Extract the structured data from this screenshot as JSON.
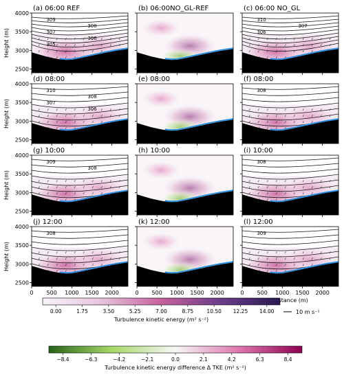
{
  "chart_data": {
    "type": "contour",
    "panels": [
      {
        "id": "a",
        "title": "(a) 06:00   REF",
        "kind": "tke",
        "contours": [
          "309",
          "308",
          "307",
          "306",
          "305"
        ],
        "wind_label": "307"
      },
      {
        "id": "b",
        "title": "(b) 06:00NO_GL-REF",
        "kind": "diff"
      },
      {
        "id": "c",
        "title": "(c) 06:00  NO_GL",
        "kind": "tke",
        "contours": [
          "310",
          "307",
          "306"
        ]
      },
      {
        "id": "d",
        "title": "(d) 08:00",
        "kind": "tke",
        "contours": [
          "310",
          "308",
          "307",
          "306"
        ]
      },
      {
        "id": "e",
        "title": "(e) 08:00",
        "kind": "diff"
      },
      {
        "id": "f",
        "title": "(f) 08:00",
        "kind": "tke",
        "contours": [
          "308"
        ]
      },
      {
        "id": "g",
        "title": "(g) 10:00",
        "kind": "tke",
        "contours": [
          "309",
          "308"
        ]
      },
      {
        "id": "h",
        "title": "(h) 10:00",
        "kind": "diff"
      },
      {
        "id": "i",
        "title": "(i) 10:00",
        "kind": "tke",
        "contours": [
          "308"
        ]
      },
      {
        "id": "j",
        "title": "(j) 12:00",
        "kind": "tke",
        "contours": [
          "308"
        ]
      },
      {
        "id": "k",
        "title": "(k) 12:00",
        "kind": "diff"
      },
      {
        "id": "l",
        "title": "(l) 12:00",
        "kind": "tke",
        "contours": [
          "309"
        ]
      }
    ],
    "ylabel": "Height (m)",
    "xlabel": "Distance (m)",
    "yticks": [
      "2500",
      "3000",
      "3500",
      "4000"
    ],
    "xticks": [
      "0",
      "500",
      "1000",
      "1500",
      "2000"
    ],
    "xlim": [
      0,
      2400
    ],
    "ylim": [
      2400,
      4000
    ],
    "colorbar_tke": {
      "label": "Turbulence kinetic energy (m² s⁻²)",
      "ticks": [
        "0.00",
        "1.75",
        "3.50",
        "5.25",
        "7.00",
        "8.75",
        "10.50",
        "12.25",
        "14.00"
      ],
      "range": [
        0,
        15.75
      ]
    },
    "colorbar_diff": {
      "label": "Turbulence kinetic energy difference Δ TKE (m² s⁻²)",
      "ticks": [
        "−8.4",
        "−6.3",
        "−4.2",
        "−2.1",
        "0.0",
        "2.1",
        "4.2",
        "6.3",
        "8.4"
      ],
      "range": [
        -10.5,
        10.5
      ]
    },
    "wind_scale_label": "10 m s⁻¹"
  }
}
